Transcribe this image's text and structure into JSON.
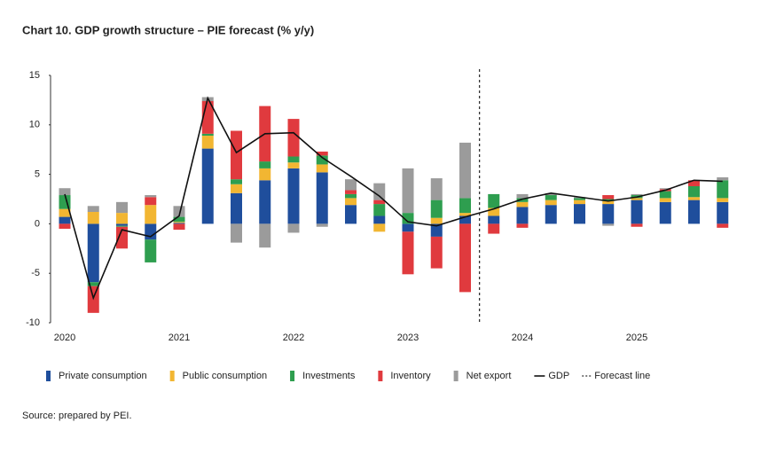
{
  "chart_data": {
    "type": "bar",
    "title": "Chart 10.  GDP growth structure – PIE forecast (% y/y)",
    "source": "Source: prepared by PEI.",
    "categories": [
      "2020",
      null,
      null,
      null,
      "2021",
      null,
      null,
      null,
      "2022",
      null,
      null,
      null,
      "2023",
      null,
      null,
      null,
      "2024",
      null,
      null,
      null,
      "2025",
      null,
      null,
      null
    ],
    "series": [
      {
        "name": "Private consumption",
        "color": "#1f4e9c",
        "values": [
          0.7,
          -5.9,
          -0.2,
          -1.6,
          0.1,
          7.6,
          3.1,
          4.4,
          5.6,
          5.2,
          1.9,
          0.8,
          -0.8,
          -1.3,
          0.8,
          0.8,
          1.7,
          1.9,
          2.0,
          2.0,
          2.4,
          2.2,
          2.4,
          2.2
        ]
      },
      {
        "name": "Public consumption",
        "color": "#f2b632",
        "values": [
          0.8,
          1.2,
          1.1,
          1.9,
          0.1,
          1.3,
          0.9,
          1.2,
          0.6,
          0.8,
          0.7,
          -0.8,
          0.0,
          0.6,
          0.3,
          0.8,
          0.5,
          0.5,
          0.4,
          0.3,
          0.2,
          0.4,
          0.3,
          0.4
        ]
      },
      {
        "name": "Investments",
        "color": "#2e9e4f",
        "values": [
          1.4,
          -0.4,
          -0.1,
          -2.3,
          0.5,
          0.2,
          0.5,
          0.7,
          0.6,
          0.9,
          0.4,
          1.2,
          1.1,
          1.8,
          1.5,
          1.4,
          0.4,
          0.5,
          0.2,
          0.2,
          0.3,
          0.7,
          1.1,
          1.8
        ]
      },
      {
        "name": "Inventory",
        "color": "#e03a3e",
        "values": [
          -0.5,
          -2.7,
          -2.2,
          0.8,
          -0.6,
          3.3,
          4.9,
          5.6,
          3.8,
          0.4,
          0.4,
          0.4,
          -4.3,
          -3.2,
          -6.9,
          -1.0,
          -0.4,
          0.0,
          0.0,
          0.4,
          -0.3,
          0.2,
          0.6,
          -0.4
        ]
      },
      {
        "name": "Net export",
        "color": "#9b9b9b",
        "values": [
          0.7,
          0.6,
          1.1,
          0.2,
          1.1,
          0.4,
          -1.9,
          -2.4,
          -0.9,
          -0.3,
          1.1,
          1.7,
          4.5,
          2.2,
          5.6,
          0.0,
          0.4,
          0.2,
          0.1,
          -0.2,
          0.1,
          0.1,
          0.0,
          0.3
        ]
      }
    ],
    "gdp": {
      "name": "GDP",
      "color": "#111111",
      "values": [
        3.0,
        -7.5,
        -0.6,
        -1.3,
        0.8,
        12.7,
        7.2,
        9.1,
        9.2,
        6.7,
        4.8,
        2.8,
        0.2,
        -0.2,
        0.7,
        1.5,
        2.5,
        3.1,
        2.7,
        2.3,
        2.7,
        3.4,
        4.4,
        4.3
      ]
    },
    "forecast_line": {
      "name": "Forecast line"
    },
    "ylim": [
      -10,
      15
    ],
    "yticks": [
      15,
      10,
      5,
      0,
      -5,
      -10
    ]
  }
}
